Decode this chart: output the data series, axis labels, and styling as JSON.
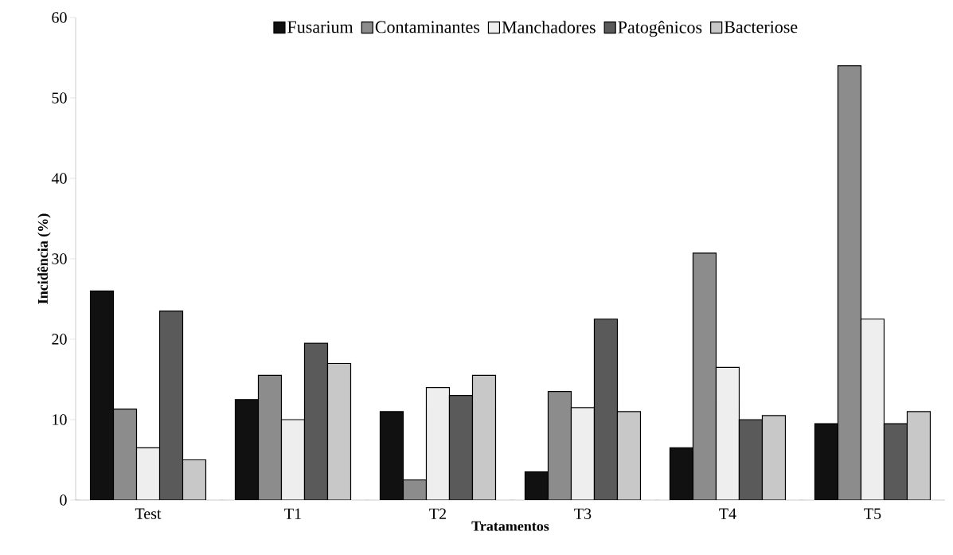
{
  "chart_data": {
    "type": "bar",
    "xlabel": "Tratamentos",
    "ylabel": "Incidência (%)",
    "categories": [
      "Test",
      "T1",
      "T2",
      "T3",
      "T4",
      "T5"
    ],
    "series": [
      {
        "name": "Fusarium",
        "color": "#111111",
        "values": [
          26,
          12.5,
          11,
          3.5,
          6.5,
          9.5
        ]
      },
      {
        "name": "Contaminantes",
        "color": "#8c8c8c",
        "values": [
          11.3,
          15.5,
          2.5,
          13.5,
          30.7,
          54
        ]
      },
      {
        "name": "Manchadores",
        "color": "#eeeeee",
        "values": [
          6.5,
          10,
          14,
          11.5,
          16.5,
          22.5
        ]
      },
      {
        "name": "Patogênicos",
        "color": "#5a5a5a",
        "values": [
          23.5,
          19.5,
          13,
          22.5,
          10,
          9.5
        ]
      },
      {
        "name": "Bacteriose",
        "color": "#c8c8c8",
        "values": [
          5,
          17,
          15.5,
          11,
          10.5,
          11
        ]
      }
    ],
    "ylim": [
      0,
      60
    ],
    "yticks": [
      0,
      10,
      20,
      30,
      40,
      50,
      60
    ],
    "grid": false,
    "legend": "top"
  }
}
